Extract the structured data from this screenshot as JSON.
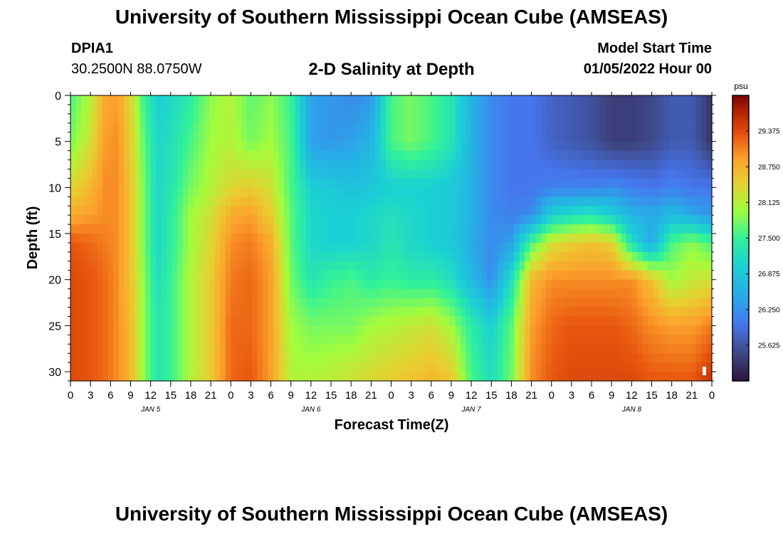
{
  "header": {
    "title": "University of Southern Mississippi Ocean Cube (AMSEAS)",
    "station_id": "DPIA1",
    "coordinates": "30.2500N  88.0750W",
    "plot_title": "2-D Salinity at Depth",
    "model_start_label": "Model Start Time",
    "model_start_value": "01/05/2022 Hour 00"
  },
  "footer": {
    "title": "University of Southern Mississippi Ocean Cube (AMSEAS)"
  },
  "chart_data": {
    "type": "heatmap",
    "title": "2-D Salinity at Depth",
    "xlabel": "Forecast Time(Z)",
    "ylabel": "Depth (ft)",
    "x_unit": "hours from 01/05/2022 00Z",
    "xlim": [
      0,
      96
    ],
    "ylim": [
      0,
      31
    ],
    "x_tick_labels": [
      "0",
      "3",
      "6",
      "9",
      "12",
      "15",
      "18",
      "21",
      "0",
      "3",
      "6",
      "9",
      "12",
      "15",
      "18",
      "21",
      "0",
      "3",
      "6",
      "9",
      "12",
      "15",
      "18",
      "21",
      "0",
      "3",
      "6",
      "9",
      "12",
      "15",
      "18",
      "21",
      "0"
    ],
    "y_ticks": [
      0,
      5,
      10,
      15,
      20,
      25,
      30
    ],
    "date_labels": [
      {
        "label": "JAN 5",
        "hour": 12
      },
      {
        "label": "JAN 6",
        "hour": 36
      },
      {
        "label": "JAN 7",
        "hour": 60
      },
      {
        "label": "JAN 8",
        "hour": 84
      }
    ],
    "colorbar": {
      "unit": "psu",
      "range": [
        25.0,
        30.0
      ],
      "ticks": [
        "29.375",
        "28.750",
        "28.125",
        "27.500",
        "26.875",
        "26.250",
        "25.625"
      ]
    },
    "depth_levels": [
      0,
      5,
      10,
      13,
      16,
      20,
      25,
      31
    ],
    "hours": [
      0,
      3,
      5,
      7,
      9,
      11,
      13,
      15,
      18,
      21,
      24,
      27,
      30,
      33,
      36,
      39,
      42,
      45,
      48,
      51,
      54,
      57,
      60,
      63,
      66,
      69,
      72,
      75,
      78,
      81,
      84,
      87,
      90,
      93,
      96
    ],
    "salinity_rows": [
      [
        27.6,
        28.1,
        28.8,
        28.9,
        28.4,
        27.5,
        27.0,
        27.1,
        27.4,
        27.9,
        28.1,
        27.7,
        27.9,
        27.5,
        26.4,
        26.3,
        26.2,
        26.3,
        27.6,
        27.8,
        27.6,
        27.3,
        26.6,
        26.2,
        26.0,
        26.0,
        25.8,
        25.7,
        25.6,
        25.4,
        25.4,
        25.5,
        25.7,
        25.7,
        25.3
      ],
      [
        27.8,
        28.3,
        28.9,
        29.0,
        28.5,
        27.7,
        27.1,
        27.2,
        27.6,
        28.0,
        28.1,
        27.8,
        28.0,
        27.6,
        26.4,
        26.3,
        26.4,
        26.6,
        27.6,
        27.8,
        27.6,
        27.3,
        26.6,
        26.2,
        26.0,
        26.0,
        25.8,
        25.7,
        25.6,
        25.4,
        25.4,
        25.5,
        25.7,
        25.7,
        25.3
      ],
      [
        28.4,
        28.7,
        29.0,
        29.0,
        28.6,
        27.8,
        27.1,
        27.3,
        27.8,
        28.1,
        28.4,
        28.5,
        28.3,
        27.6,
        27.0,
        26.9,
        26.8,
        26.9,
        27.0,
        27.0,
        27.0,
        26.9,
        26.6,
        26.2,
        26.0,
        26.0,
        26.1,
        26.1,
        26.1,
        26.2,
        26.1,
        26.0,
        26.1,
        26.0,
        26.0
      ],
      [
        28.8,
        28.9,
        29.0,
        29.0,
        28.6,
        27.8,
        27.1,
        27.4,
        28.0,
        28.3,
        28.8,
        28.9,
        28.5,
        27.7,
        27.1,
        27.0,
        27.0,
        27.1,
        27.2,
        27.1,
        27.0,
        26.9,
        26.6,
        26.2,
        26.1,
        26.2,
        27.0,
        27.2,
        27.3,
        27.0,
        26.6,
        26.5,
        26.7,
        26.5,
        26.3
      ],
      [
        29.3,
        29.2,
        29.1,
        29.0,
        28.6,
        27.8,
        27.1,
        27.4,
        28.0,
        28.4,
        29.0,
        29.1,
        28.8,
        27.7,
        27.1,
        27.0,
        27.0,
        27.1,
        27.3,
        27.1,
        27.0,
        26.9,
        26.5,
        26.2,
        26.4,
        27.6,
        28.3,
        28.5,
        28.6,
        28.5,
        27.2,
        26.5,
        27.6,
        27.9,
        27.6
      ],
      [
        29.4,
        29.3,
        29.2,
        29.0,
        28.6,
        27.9,
        27.2,
        27.5,
        28.1,
        28.5,
        29.1,
        29.2,
        28.9,
        27.8,
        27.3,
        27.5,
        27.6,
        27.4,
        27.5,
        27.4,
        27.4,
        27.2,
        26.7,
        26.2,
        27.2,
        28.7,
        29.0,
        29.0,
        29.0,
        29.0,
        29.0,
        28.6,
        28.0,
        28.2,
        28.3
      ],
      [
        29.4,
        29.3,
        29.2,
        29.0,
        28.7,
        27.9,
        27.3,
        27.5,
        28.1,
        28.5,
        29.2,
        29.2,
        28.9,
        28.0,
        27.8,
        27.8,
        27.8,
        28.0,
        28.1,
        28.2,
        28.3,
        28.0,
        27.4,
        27.0,
        27.7,
        28.9,
        29.2,
        29.3,
        29.3,
        29.3,
        29.2,
        29.0,
        28.9,
        28.9,
        29.1
      ],
      [
        29.4,
        29.3,
        29.2,
        29.0,
        28.7,
        27.9,
        27.3,
        27.5,
        28.1,
        28.5,
        29.2,
        29.3,
        28.9,
        28.1,
        28.1,
        28.2,
        28.3,
        28.4,
        28.5,
        28.6,
        28.7,
        28.6,
        27.6,
        27.2,
        27.8,
        29.0,
        29.3,
        29.4,
        29.4,
        29.4,
        29.4,
        29.3,
        29.3,
        29.3,
        29.6
      ]
    ]
  }
}
